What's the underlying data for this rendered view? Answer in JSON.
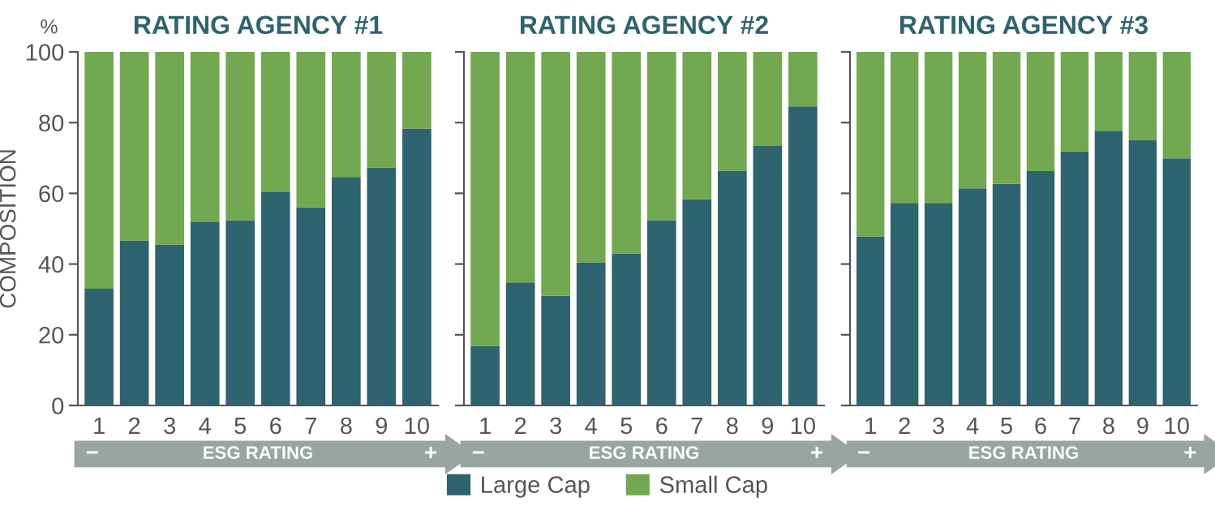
{
  "chart_data": [
    {
      "type": "bar",
      "stacked": true,
      "title": "RATING AGENCY #1",
      "ylabel": "COMPOSITION",
      "xlabel": "ESG RATING",
      "annotations": [
        "%",
        "−",
        "+"
      ],
      "categories": [
        "1",
        "2",
        "3",
        "4",
        "5",
        "6",
        "7",
        "8",
        "9",
        "10"
      ],
      "ylim": [
        0,
        100
      ],
      "yticks": [
        0,
        20,
        40,
        60,
        80,
        100
      ],
      "grid": false,
      "legend": "bottom",
      "series": [
        {
          "name": "Large Cap",
          "color": "#2e6370",
          "values": [
            33,
            46.7,
            45.5,
            52,
            52.4,
            60.3,
            56,
            64.6,
            67.3,
            78.3
          ]
        },
        {
          "name": "Small Cap",
          "color": "#72a84f",
          "values": [
            67,
            53.3,
            54.5,
            48,
            47.6,
            39.7,
            44,
            35.4,
            32.7,
            21.7
          ]
        }
      ]
    },
    {
      "type": "bar",
      "stacked": true,
      "title": "RATING AGENCY #2",
      "xlabel": "ESG RATING",
      "annotations": [
        "−",
        "+"
      ],
      "categories": [
        "1",
        "2",
        "3",
        "4",
        "5",
        "6",
        "7",
        "8",
        "9",
        "10"
      ],
      "ylim": [
        0,
        100
      ],
      "yticks": [
        0,
        20,
        40,
        60,
        80,
        100
      ],
      "tick_labels": "x",
      "grid": false,
      "series": [
        {
          "color": "#2e6370",
          "values": [
            16.8,
            34.8,
            31,
            40.5,
            43,
            52.4,
            58.3,
            66.4,
            73.4,
            84.6
          ]
        },
        {
          "color": "#72a84f",
          "values": [
            83.2,
            65.2,
            69,
            59.5,
            57,
            47.6,
            41.7,
            33.6,
            26.6,
            15.4
          ]
        }
      ]
    },
    {
      "type": "bar",
      "stacked": true,
      "title": "RATING AGENCY #3",
      "xlabel": "ESG RATING",
      "annotations": [
        "−",
        "+"
      ],
      "categories": [
        "1",
        "2",
        "3",
        "4",
        "5",
        "6",
        "7",
        "8",
        "9",
        "10"
      ],
      "ylim": [
        0,
        100
      ],
      "yticks": [
        0,
        20,
        40,
        60,
        80,
        100
      ],
      "tick_labels": "x",
      "grid": false,
      "series": [
        {
          "color": "#2e6370",
          "values": [
            47.8,
            57.3,
            57.3,
            61.4,
            62.7,
            66.3,
            71.9,
            77.7,
            75,
            69.9
          ]
        },
        {
          "color": "#72a84f",
          "values": [
            52.2,
            42.7,
            42.7,
            38.6,
            37.3,
            33.7,
            28.1,
            22.3,
            25,
            30.1
          ]
        }
      ]
    }
  ]
}
